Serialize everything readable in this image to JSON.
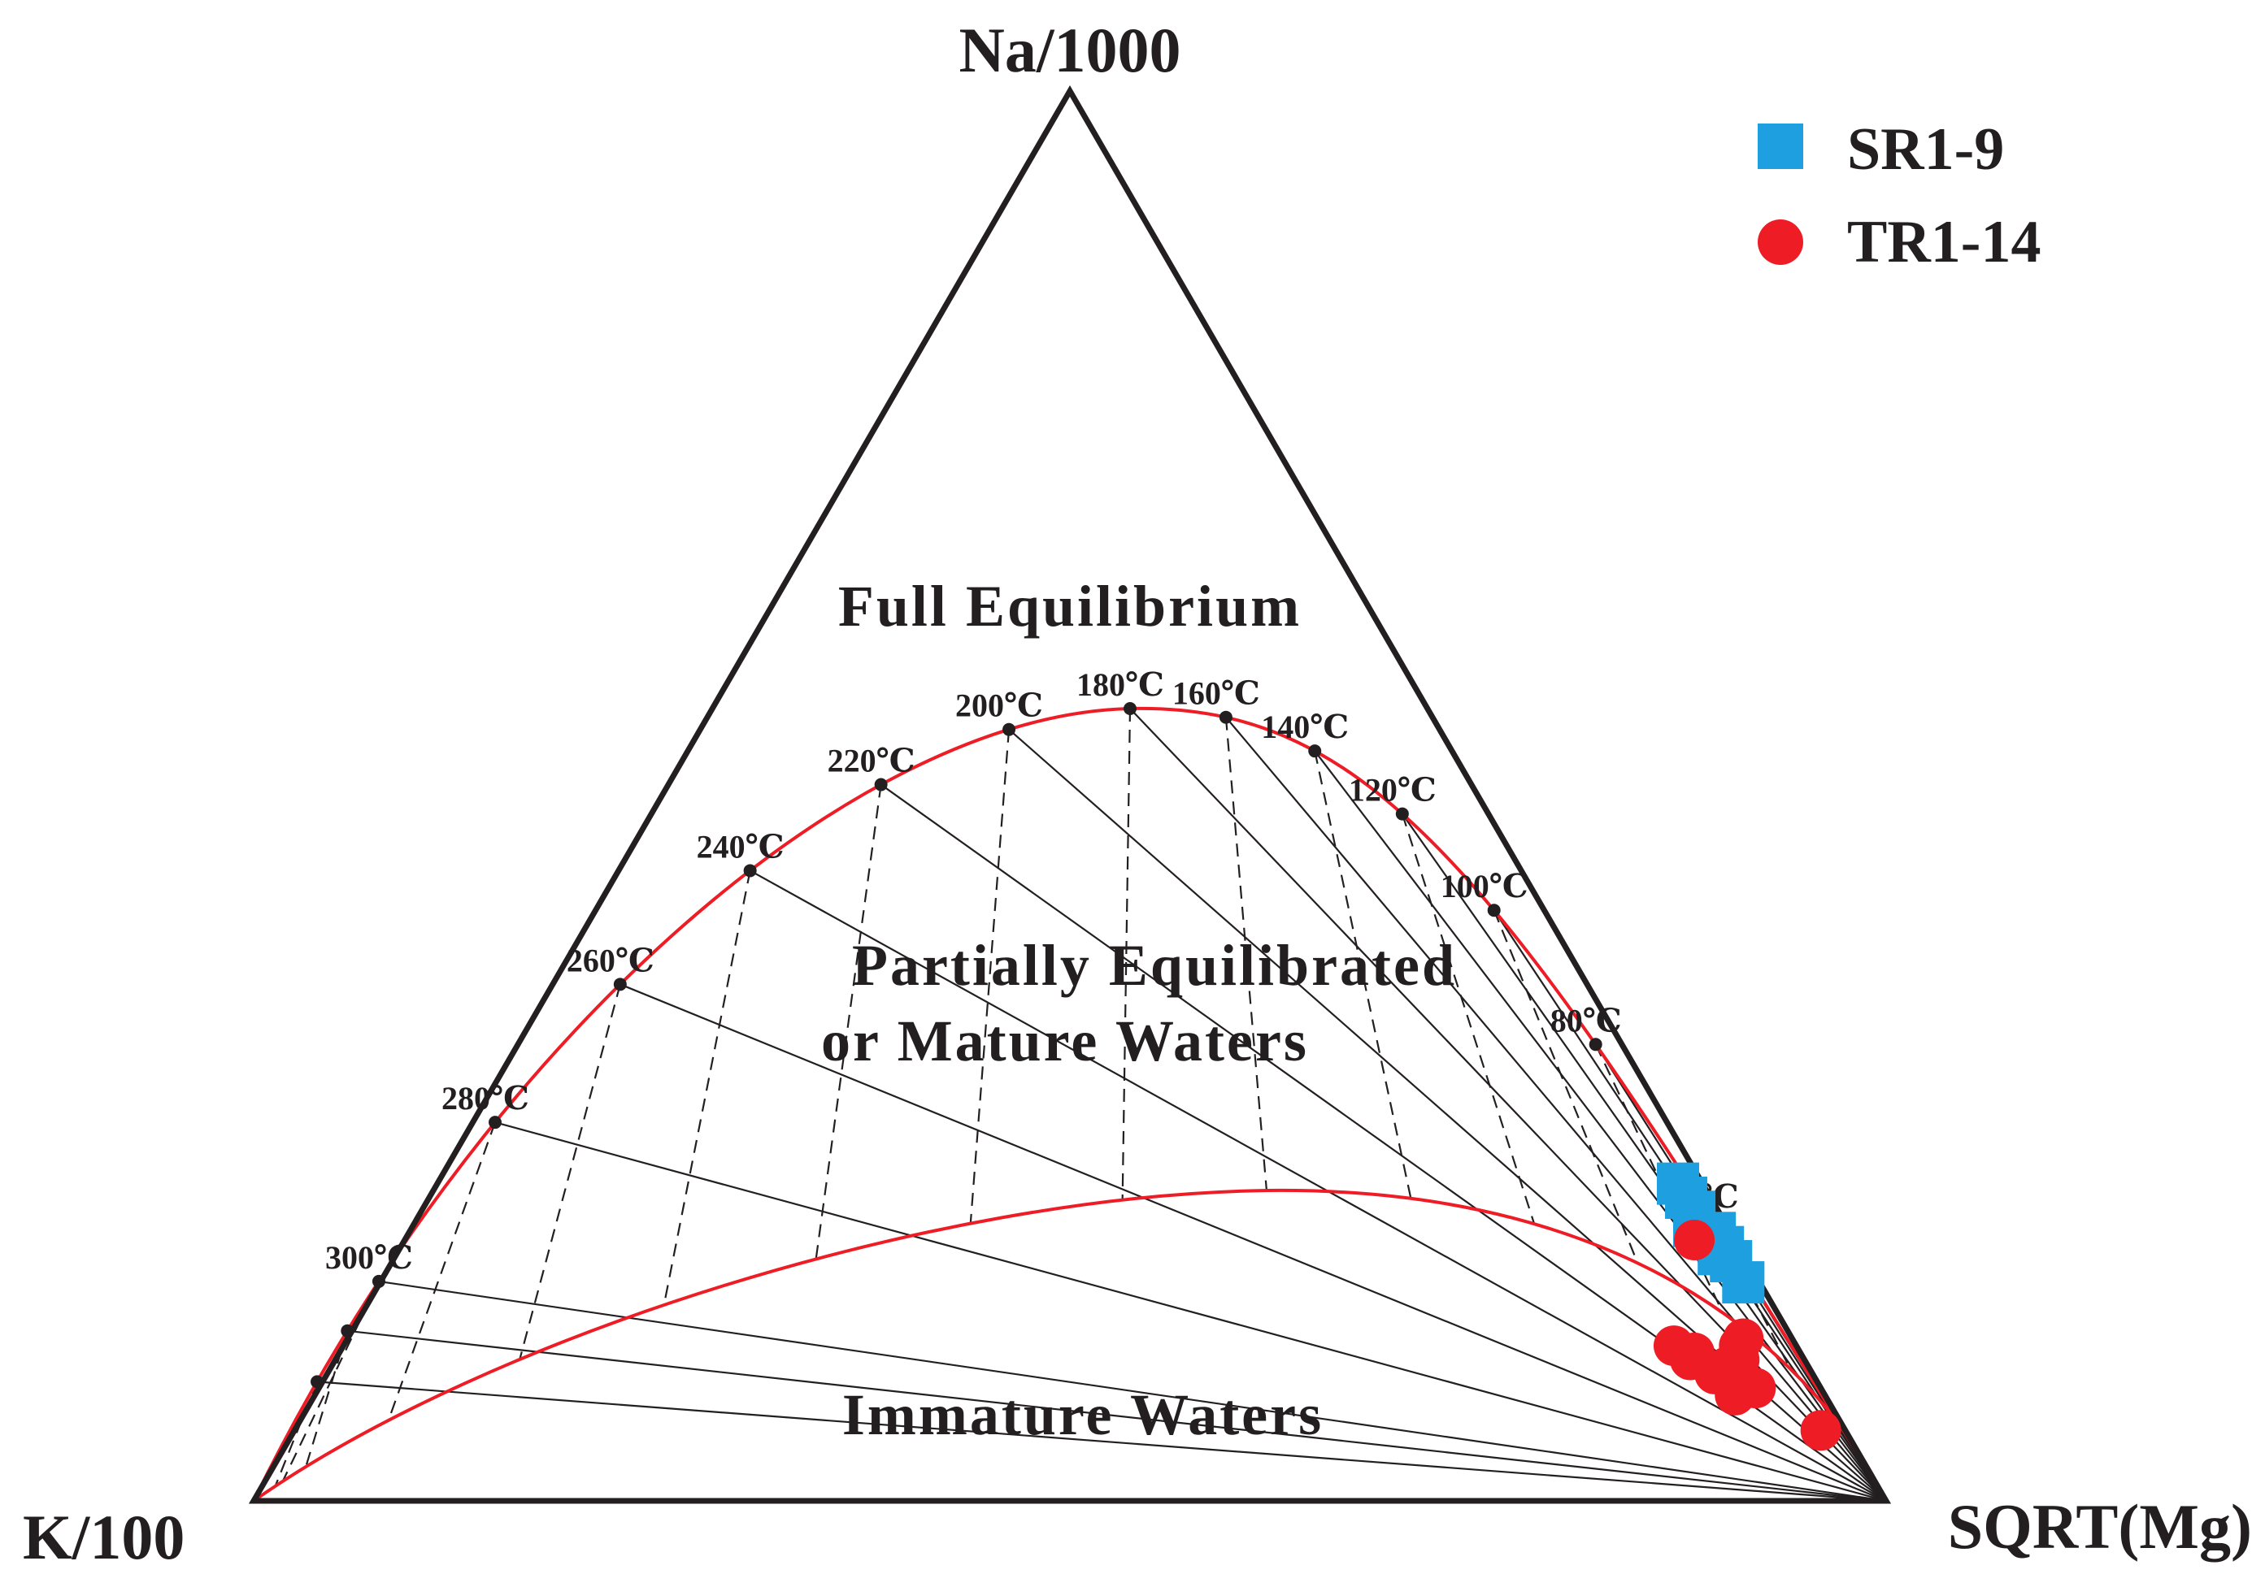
{
  "chart_data": {
    "type": "scatter",
    "subtype": "ternary",
    "vertices": {
      "top": "Na/1000",
      "left": "K/100",
      "right": "SQRT(Mg)"
    },
    "regions": {
      "full_equilibrium": "Full Equilibrium",
      "partial_line1": "Partially Equilibrated",
      "partial_line2": "or Mature Waters",
      "immature": "Immature Waters"
    },
    "isotherms": [
      {
        "label": "300℃",
        "left_pct": 64.5
      },
      {
        "label": "280℃",
        "left_pct": 60.0
      },
      {
        "label": "260℃",
        "left_pct": 55.5
      },
      {
        "label": "240℃",
        "left_pct": 51.0
      },
      {
        "label": "220℃",
        "left_pct": 45.0
      },
      {
        "label": "200℃",
        "left_pct": 39.0
      },
      {
        "label": "180℃",
        "left_pct": 32.5
      },
      {
        "label": "160℃",
        "left_pct": 24.5
      },
      {
        "label": "140℃",
        "left_pct": 19.0
      },
      {
        "label": "120℃",
        "left_pct": 13.0
      },
      {
        "label": "100℃",
        "left_pct": 7.5
      },
      {
        "label": "80℃",
        "left_pct": 4.5
      },
      {
        "label": "40℃",
        "left_pct": 1.5
      }
    ],
    "series": [
      {
        "name": "SR1-9",
        "color": "#1ea0e0",
        "marker": "square",
        "points": [
          {
            "na": 22.5,
            "k": 1.5,
            "mg": 76.0
          },
          {
            "na": 21.5,
            "k": 1.5,
            "mg": 77.0
          },
          {
            "na": 20.5,
            "k": 1.5,
            "mg": 78.0
          },
          {
            "na": 19.0,
            "k": 1.0,
            "mg": 80.0
          },
          {
            "na": 18.0,
            "k": 1.0,
            "mg": 81.0
          },
          {
            "na": 17.0,
            "k": 1.0,
            "mg": 82.0
          },
          {
            "na": 15.5,
            "k": 1.0,
            "mg": 83.5
          },
          {
            "na": 19.5,
            "k": 2.0,
            "mg": 78.5
          },
          {
            "na": 17.5,
            "k": 1.5,
            "mg": 81.0
          }
        ]
      },
      {
        "name": "TR1-14",
        "color": "#ee1c25",
        "marker": "circle",
        "points": [
          {
            "na": 18.5,
            "k": 2.5,
            "mg": 79.0
          },
          {
            "na": 11.0,
            "k": 7.5,
            "mg": 81.5
          },
          {
            "na": 10.0,
            "k": 7.0,
            "mg": 83.0
          },
          {
            "na": 9.0,
            "k": 6.0,
            "mg": 85.0
          },
          {
            "na": 8.5,
            "k": 4.5,
            "mg": 87.0
          },
          {
            "na": 10.0,
            "k": 4.0,
            "mg": 86.0
          },
          {
            "na": 11.0,
            "k": 3.5,
            "mg": 85.5
          },
          {
            "na": 7.5,
            "k": 5.5,
            "mg": 87.0
          },
          {
            "na": 8.0,
            "k": 4.0,
            "mg": 88.0
          },
          {
            "na": 9.5,
            "k": 5.0,
            "mg": 85.5
          },
          {
            "na": 10.5,
            "k": 6.5,
            "mg": 83.0
          },
          {
            "na": 9.0,
            "k": 5.5,
            "mg": 85.5
          },
          {
            "na": 11.5,
            "k": 3.0,
            "mg": 85.5
          },
          {
            "na": 5.0,
            "k": 1.5,
            "mg": 93.5
          }
        ]
      }
    ],
    "legend_position": "top-right",
    "colors": {
      "frame": "#231f20",
      "curve": "#ee1c25",
      "grid": "#231f20"
    }
  }
}
